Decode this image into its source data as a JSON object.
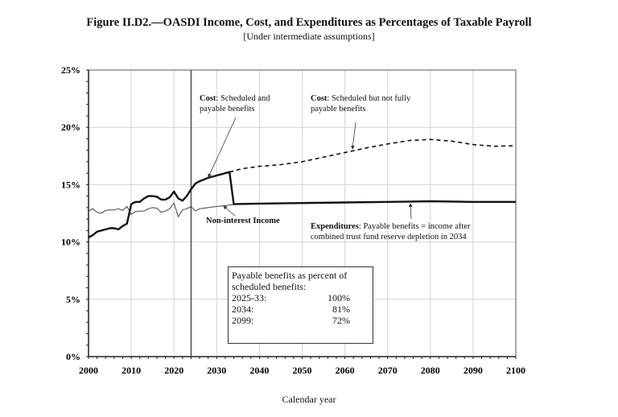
{
  "chart_data": {
    "type": "line",
    "title": "Figure II.D2.—OASDI Income, Cost, and Expenditures as Percentages of Taxable Payroll",
    "subtitle": "[Under intermediate assumptions]",
    "xlabel": "Calendar year",
    "ylabel": "",
    "xlim": [
      2000,
      2100
    ],
    "ylim": [
      0,
      25
    ],
    "x_ticks": [
      "2000",
      "2010",
      "2020",
      "2030",
      "2040",
      "2050",
      "2060",
      "2070",
      "2080",
      "2090",
      "2100"
    ],
    "y_ticks": [
      "0%",
      "5%",
      "10%",
      "15%",
      "20%",
      "25%"
    ],
    "grid": true,
    "vertical_marker_year": 2024,
    "series": [
      {
        "name": "Cost: Scheduled and payable benefits",
        "style": "thick-solid",
        "x": [
          2000,
          2001,
          2002,
          2003,
          2004,
          2005,
          2006,
          2007,
          2008,
          2009,
          2010,
          2011,
          2012,
          2013,
          2014,
          2015,
          2016,
          2017,
          2018,
          2019,
          2020,
          2021,
          2022,
          2023,
          2024,
          2025,
          2026,
          2028,
          2030,
          2033,
          2034,
          2040,
          2050,
          2060,
          2070,
          2080,
          2090,
          2100
        ],
        "y": [
          10.4,
          10.6,
          10.9,
          11.0,
          11.1,
          11.2,
          11.2,
          11.1,
          11.4,
          11.6,
          13.3,
          13.5,
          13.5,
          13.8,
          14.0,
          14.0,
          13.95,
          13.7,
          13.7,
          13.9,
          14.4,
          13.8,
          13.6,
          14.0,
          14.6,
          15.1,
          15.3,
          15.6,
          15.8,
          16.1,
          13.3,
          13.35,
          13.4,
          13.45,
          13.5,
          13.55,
          13.5,
          13.5
        ]
      },
      {
        "name": "Cost: Scheduled but not fully payable benefits",
        "style": "dashed",
        "x": [
          2033,
          2036,
          2040,
          2045,
          2050,
          2055,
          2060,
          2065,
          2070,
          2075,
          2080,
          2085,
          2090,
          2095,
          2100
        ],
        "y": [
          16.1,
          16.4,
          16.6,
          16.75,
          17.0,
          17.4,
          17.8,
          18.2,
          18.55,
          18.85,
          18.95,
          18.8,
          18.5,
          18.35,
          18.4
        ]
      },
      {
        "name": "Non-interest Income",
        "style": "thin-solid",
        "x": [
          2000,
          2001,
          2002,
          2003,
          2004,
          2005,
          2006,
          2007,
          2008,
          2009,
          2010,
          2011,
          2012,
          2013,
          2014,
          2015,
          2016,
          2017,
          2018,
          2019,
          2020,
          2021,
          2022,
          2023,
          2024,
          2025,
          2026,
          2028,
          2030,
          2034
        ],
        "y": [
          12.7,
          12.9,
          12.6,
          12.5,
          12.75,
          12.8,
          12.8,
          12.9,
          12.75,
          13.1,
          12.4,
          12.65,
          12.7,
          12.7,
          12.9,
          13.0,
          12.95,
          12.6,
          12.7,
          12.9,
          13.4,
          12.2,
          12.8,
          12.9,
          13.1,
          12.7,
          12.9,
          13.0,
          13.1,
          13.25
        ]
      }
    ],
    "annotations": {
      "cost_payable_bold": "Cost",
      "cost_payable_text": ": Scheduled and payable benefits",
      "cost_unpaid_bold": "Cost",
      "cost_unpaid_text": ": Scheduled but not fully payable benefits",
      "income_label": "Non-interest Income",
      "expenditures_bold": "Expenditures",
      "expenditures_text": ": Payable benefits = income after combined trust fund reserve depletion in 2034"
    },
    "inset_box": {
      "heading": "Payable benefits as percent of scheduled benefits:",
      "rows": [
        {
          "period": "2025-33:",
          "value": "100%"
        },
        {
          "period": "2034:",
          "value": "81%"
        },
        {
          "period": "2099:",
          "value": "72%"
        }
      ]
    }
  }
}
